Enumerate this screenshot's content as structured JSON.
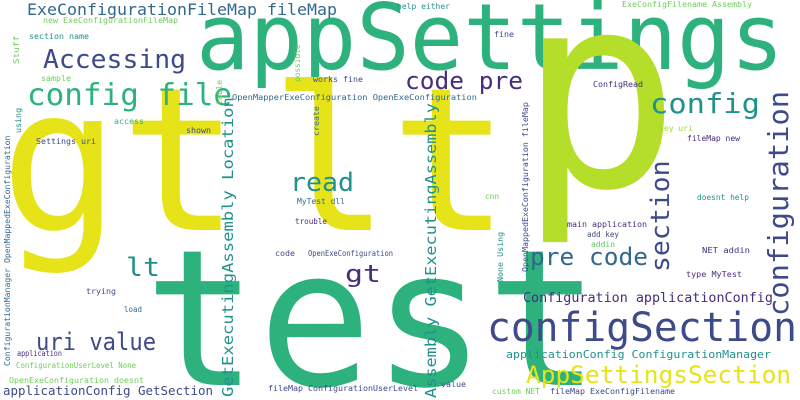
{
  "palette": {
    "yellow": "#e6e419",
    "lime": "#b5de2b",
    "green": "#2db27d",
    "teal": "#21918c",
    "blue": "#31688e",
    "indigo": "#3e4a89",
    "purple": "#472d7b",
    "light_green": "#6ece58",
    "mint": "#35b779",
    "pale": "#a0da39",
    "bright_green": "#5ec962"
  },
  "words": [
    {
      "text": "appSettings"
    },
    {
      "text": "p"
    },
    {
      "text": "gt"
    },
    {
      "text": "lt"
    },
    {
      "text": "test"
    },
    {
      "text": "configSection"
    },
    {
      "text": "config file"
    },
    {
      "text": "Accessing"
    },
    {
      "text": "code pre"
    },
    {
      "text": "config"
    },
    {
      "text": "configuration"
    },
    {
      "text": "section"
    },
    {
      "text": "read"
    },
    {
      "text": "lt"
    },
    {
      "text": "gt"
    },
    {
      "text": "pre code"
    },
    {
      "text": "uri value"
    },
    {
      "text": "AppSettingsSection"
    },
    {
      "text": "ExeConfigurationFileMap fileMap"
    },
    {
      "text": "GetExecutingAssembly Location"
    },
    {
      "text": "Assembly GetExecutingAssembly"
    },
    {
      "text": "Configuration applicationConfig"
    },
    {
      "text": "applicationConfig ConfigurationManager"
    },
    {
      "text": "applicationConfig GetSection"
    },
    {
      "text": "new ExeConfigurationFileMap"
    },
    {
      "text": "help either"
    },
    {
      "text": "ExeConfigFilename Assembly"
    },
    {
      "text": "section name"
    },
    {
      "text": "Stuff"
    },
    {
      "text": "sample"
    },
    {
      "text": "fine"
    },
    {
      "text": "possible"
    },
    {
      "text": "works fine"
    },
    {
      "text": "table"
    },
    {
      "text": "ConfigRead"
    },
    {
      "text": "OpenMapperExeConfiguration OpenExeConfiguration"
    },
    {
      "text": "using"
    },
    {
      "text": "access"
    },
    {
      "text": "Settings uri"
    },
    {
      "text": "shown"
    },
    {
      "text": "create"
    },
    {
      "text": "OpenMappedExeConfiguration fileMap"
    },
    {
      "text": "key uri"
    },
    {
      "text": "fileMap new"
    },
    {
      "text": "ConfigurationManager OpenMappedExeConfiguration"
    },
    {
      "text": "MyTest dll"
    },
    {
      "text": "trouble"
    },
    {
      "text": "cnn"
    },
    {
      "text": "doesnt help"
    },
    {
      "text": "add key"
    },
    {
      "text": "addin"
    },
    {
      "text": "main application"
    },
    {
      "text": "None Using"
    },
    {
      "text": "code"
    },
    {
      "text": "OpenExeConfiguration"
    },
    {
      "text": "NET addin"
    },
    {
      "text": "type MyTest"
    },
    {
      "text": "trying"
    },
    {
      "text": "load"
    },
    {
      "text": "application"
    },
    {
      "text": "ConfigurationUserLevel None"
    },
    {
      "text": "OpenExeConfiguration doesnt"
    },
    {
      "text": "fileMap ConfigurationUserLevel"
    },
    {
      "text": "value"
    },
    {
      "text": "custom NET"
    },
    {
      "text": "fileMap ExeConfigFilename"
    }
  ]
}
